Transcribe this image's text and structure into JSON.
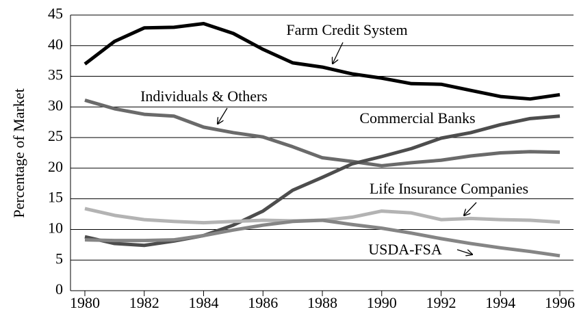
{
  "chart_data": {
    "type": "line",
    "y_label": "Percentage of Market",
    "x": [
      1980,
      1981,
      1982,
      1983,
      1984,
      1985,
      1986,
      1987,
      1988,
      1989,
      1990,
      1991,
      1992,
      1993,
      1994,
      1995,
      1996
    ],
    "xlim": [
      1980,
      1996
    ],
    "xticks": [
      1980,
      1982,
      1984,
      1986,
      1988,
      1990,
      1992,
      1994,
      1996
    ],
    "ylim": [
      0,
      45
    ],
    "yticks": [
      0,
      5,
      10,
      15,
      20,
      25,
      30,
      35,
      40,
      45
    ],
    "grid": true,
    "series": [
      {
        "name": "Farm Credit System",
        "color": "#000000",
        "values": [
          37,
          40.7,
          42.9,
          43,
          43.6,
          42,
          39.4,
          37.2,
          36.5,
          35.4,
          34.7,
          33.8,
          33.7,
          32.7,
          31.7,
          31.3,
          32
        ]
      },
      {
        "name": "Individuals & Others",
        "color": "#6a6a6a",
        "values": [
          31.1,
          29.7,
          28.8,
          28.5,
          26.7,
          25.8,
          25.1,
          23.5,
          21.7,
          21.1,
          20.4,
          20.9,
          21.3,
          22,
          22.5,
          22.7,
          22.6
        ]
      },
      {
        "name": "Commercial Banks",
        "color": "#4d4d4d",
        "values": [
          8.8,
          7.7,
          7.4,
          8.1,
          9,
          10.7,
          13,
          16.4,
          18.5,
          20.7,
          21.9,
          23.2,
          24.9,
          25.8,
          27.1,
          28.1,
          28.5
        ]
      },
      {
        "name": "Life Insurance Companies",
        "color": "#b3b3b3",
        "values": [
          13.4,
          12.3,
          11.6,
          11.3,
          11.1,
          11.3,
          11.5,
          11.4,
          11.5,
          12,
          13,
          12.7,
          11.6,
          11.8,
          11.6,
          11.5,
          11.2
        ]
      },
      {
        "name": "USDA-FSA",
        "color": "#858585",
        "values": [
          8.3,
          8.2,
          8.2,
          8.3,
          9,
          9.9,
          10.7,
          11.3,
          11.5,
          10.8,
          10.2,
          9.4,
          8.5,
          7.7,
          7,
          6.4,
          5.7
        ]
      }
    ]
  }
}
